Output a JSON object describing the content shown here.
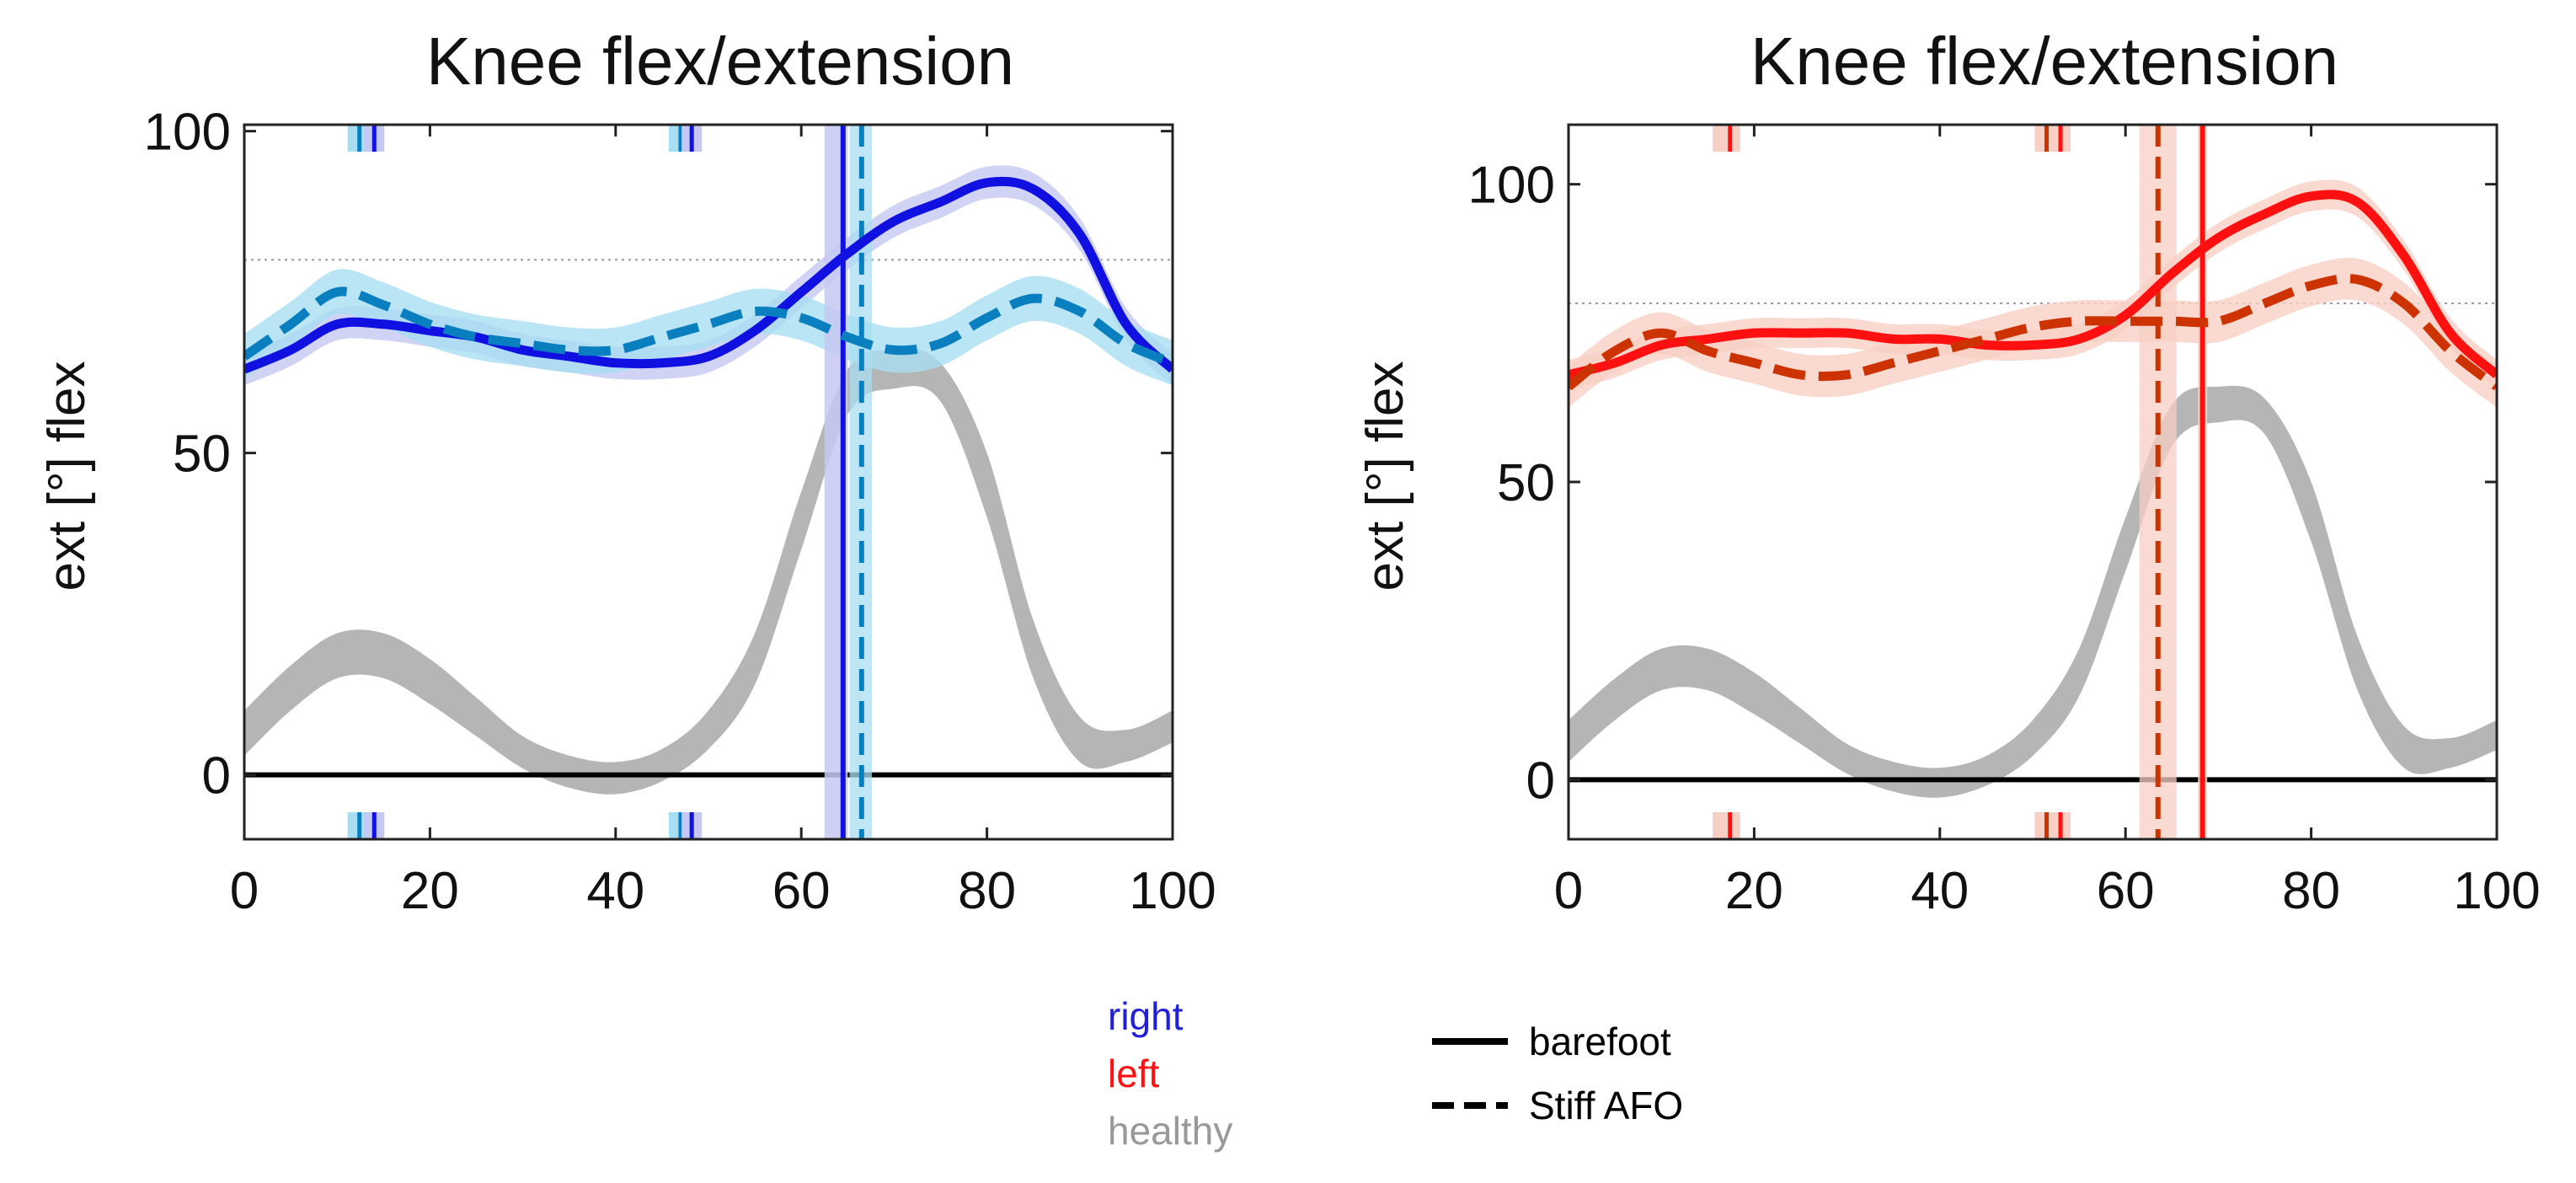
{
  "colors": {
    "right": "#1010e0",
    "right_afo": "#0a7fbf",
    "right_band": "#c5c8f2",
    "right_afo_band": "#a8def2",
    "left": "#ff1010",
    "left_afo": "#cc3300",
    "left_band": "#f7cfc4",
    "healthy": "#b5b5b5",
    "zero_line": "#000000",
    "ref_line": "#999999"
  },
  "legend": {
    "sides": {
      "right": "right",
      "left": "left",
      "healthy": "healthy"
    },
    "styles": {
      "barefoot": "barefoot",
      "stiff_afo": "Stiff AFO"
    }
  },
  "chart_data": [
    {
      "type": "line",
      "side": "right",
      "title": "Knee flex/extension",
      "ylabel": "ext   [°]   flex",
      "xlabel": "",
      "xlim": [
        0,
        100
      ],
      "ylim": [
        -10,
        101
      ],
      "xticks": [
        "0",
        "20",
        "40",
        "60",
        "80",
        "100"
      ],
      "yticks": [
        "0",
        "50",
        "100"
      ],
      "reference_line_y": 80,
      "x": [
        0,
        5,
        10,
        15,
        20,
        25,
        30,
        35,
        40,
        45,
        50,
        55,
        60,
        65,
        70,
        75,
        80,
        85,
        90,
        95,
        100
      ],
      "series": [
        {
          "name": "barefoot",
          "values": [
            63,
            66,
            70,
            70,
            69,
            68,
            66,
            65,
            64,
            64,
            65,
            69,
            75,
            81,
            86,
            89,
            92,
            91,
            84,
            70,
            63
          ]
        },
        {
          "name": "Stiff AFO",
          "values": [
            65,
            70,
            75,
            73,
            70,
            68,
            67,
            66,
            66,
            68,
            70,
            72,
            71,
            68,
            66,
            67,
            71,
            74,
            72,
            67,
            64
          ]
        }
      ],
      "healthy_band": {
        "x": [
          0,
          5,
          10,
          15,
          20,
          25,
          30,
          35,
          40,
          45,
          50,
          55,
          60,
          65,
          70,
          75,
          80,
          85,
          90,
          95,
          100
        ],
        "lower": [
          3,
          10,
          15,
          15,
          11,
          6,
          1,
          -2,
          -3,
          -1,
          4,
          14,
          35,
          56,
          60,
          58,
          40,
          15,
          2,
          2,
          5
        ],
        "upper": [
          10,
          17,
          22,
          22,
          18,
          12,
          6,
          3,
          2,
          4,
          10,
          22,
          44,
          63,
          66,
          64,
          50,
          24,
          9,
          7,
          10
        ]
      },
      "events": {
        "toe_off_barefoot": 64.5,
        "toe_off_barefoot_band": [
          62.5,
          65.0
        ],
        "toe_off_afo": 66.5,
        "toe_off_afo_band": [
          65.2,
          67.6
        ],
        "contra_events_barefoot": [
          14.0,
          48.2
        ],
        "contra_events_afo": [
          12.4,
          47.0
        ]
      }
    },
    {
      "type": "line",
      "side": "left",
      "title": "Knee flex/extension",
      "ylabel": "ext   [°]   flex",
      "xlabel": "",
      "xlim": [
        0,
        100
      ],
      "ylim": [
        -10,
        110
      ],
      "xticks": [
        "0",
        "20",
        "40",
        "60",
        "80",
        "100"
      ],
      "yticks": [
        "0",
        "50",
        "100"
      ],
      "reference_line_y": 80,
      "x": [
        0,
        5,
        10,
        15,
        20,
        25,
        30,
        35,
        40,
        45,
        50,
        55,
        60,
        65,
        70,
        75,
        80,
        85,
        90,
        95,
        100
      ],
      "series": [
        {
          "name": "barefoot",
          "values": [
            68,
            70,
            73,
            74,
            75,
            75,
            75,
            74,
            74,
            73,
            73,
            74,
            78,
            85,
            91,
            95,
            98,
            97,
            88,
            75,
            68
          ]
        },
        {
          "name": "Stiff AFO",
          "values": [
            66,
            72,
            75,
            72,
            70,
            68,
            68,
            70,
            72,
            74,
            76,
            77,
            77,
            77,
            77,
            80,
            83,
            84,
            80,
            72,
            66
          ]
        }
      ],
      "healthy_band": {
        "x": [
          0,
          5,
          10,
          15,
          20,
          25,
          30,
          35,
          40,
          45,
          50,
          55,
          60,
          65,
          70,
          75,
          80,
          85,
          90,
          95,
          100
        ],
        "lower": [
          3,
          10,
          15,
          15,
          11,
          6,
          1,
          -2,
          -3,
          -1,
          4,
          14,
          35,
          56,
          60,
          58,
          40,
          15,
          2,
          2,
          5
        ],
        "upper": [
          10,
          17,
          22,
          22,
          18,
          12,
          6,
          3,
          2,
          4,
          10,
          22,
          44,
          63,
          66,
          64,
          50,
          24,
          9,
          7,
          10
        ]
      },
      "events": {
        "toe_off_barefoot": 68.3,
        "toe_off_barefoot_band": [
          67.8,
          68.8
        ],
        "toe_off_afo": 63.5,
        "toe_off_afo_band": [
          61.5,
          65.5
        ],
        "contra_events_barefoot": [
          17.4,
          53.0
        ],
        "contra_events_afo": [
          16.8,
          51.5
        ]
      }
    }
  ]
}
